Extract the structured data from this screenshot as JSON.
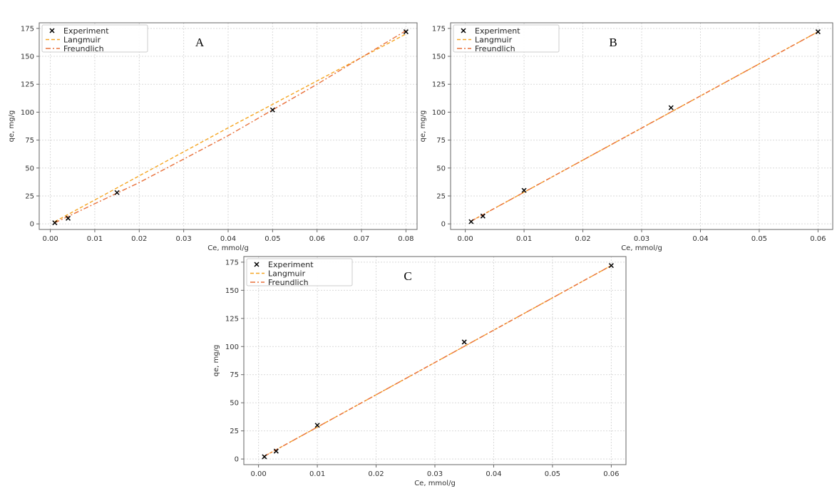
{
  "colors": {
    "experiment": "#000000",
    "langmuir": "#f5a623",
    "freundlich": "#e8703a",
    "grid": "#d9d9d9",
    "axis": "#666666"
  },
  "chart_data": [
    {
      "panel": "A",
      "type": "line",
      "xlabel": "Ce, mmol/g",
      "ylabel": "qe, mg/g",
      "xlim": [
        -0.0025,
        0.0825
      ],
      "ylim": [
        -5,
        180
      ],
      "xticks": [
        0.0,
        0.01,
        0.02,
        0.03,
        0.04,
        0.05,
        0.06,
        0.07,
        0.08
      ],
      "xtick_labels": [
        "0.00",
        "0.01",
        "0.02",
        "0.03",
        "0.04",
        "0.05",
        "0.06",
        "0.07",
        "0.08"
      ],
      "yticks": [
        0,
        25,
        50,
        75,
        100,
        125,
        150,
        175
      ],
      "ytick_labels": [
        "0",
        "25",
        "50",
        "75",
        "100",
        "125",
        "150",
        "175"
      ],
      "grid": true,
      "legend_position": "top-left",
      "series": [
        {
          "name": "Experiment",
          "style": "markers-x",
          "x": [
            0.001,
            0.004,
            0.015,
            0.05,
            0.08
          ],
          "y": [
            1,
            5,
            28,
            102,
            172
          ]
        },
        {
          "name": "Langmuir",
          "style": "dashed",
          "x": [
            0.001,
            0.02,
            0.04,
            0.06,
            0.08
          ],
          "y": [
            2,
            43,
            86,
            128,
            170
          ]
        },
        {
          "name": "Freundlich",
          "style": "dashdot",
          "x": [
            0.001,
            0.02,
            0.04,
            0.06,
            0.08
          ],
          "y": [
            1,
            37,
            79,
            125,
            173
          ]
        }
      ]
    },
    {
      "panel": "B",
      "type": "line",
      "xlabel": "Ce, mmol/g",
      "ylabel": "qe, mg/g",
      "xlim": [
        -0.0025,
        0.0625
      ],
      "ylim": [
        -5,
        180
      ],
      "xticks": [
        0.0,
        0.01,
        0.02,
        0.03,
        0.04,
        0.05,
        0.06
      ],
      "xtick_labels": [
        "0.00",
        "0.01",
        "0.02",
        "0.03",
        "0.04",
        "0.05",
        "0.06"
      ],
      "yticks": [
        0,
        25,
        50,
        75,
        100,
        125,
        150,
        175
      ],
      "ytick_labels": [
        "0",
        "25",
        "50",
        "75",
        "100",
        "125",
        "150",
        "175"
      ],
      "grid": true,
      "legend_position": "top-left",
      "series": [
        {
          "name": "Experiment",
          "style": "markers-x",
          "x": [
            0.001,
            0.003,
            0.01,
            0.035,
            0.06
          ],
          "y": [
            2,
            7,
            30,
            104,
            172
          ]
        },
        {
          "name": "Langmuir",
          "style": "dashed",
          "x": [
            0.001,
            0.06
          ],
          "y": [
            2.5,
            172
          ]
        },
        {
          "name": "Freundlich",
          "style": "dashdot",
          "x": [
            0.001,
            0.06
          ],
          "y": [
            2.5,
            172
          ]
        }
      ]
    },
    {
      "panel": "C",
      "type": "line",
      "xlabel": "Ce, mmol/g",
      "ylabel": "qe, mg/g",
      "xlim": [
        -0.0025,
        0.0625
      ],
      "ylim": [
        -5,
        180
      ],
      "xticks": [
        0.0,
        0.01,
        0.02,
        0.03,
        0.04,
        0.05,
        0.06
      ],
      "xtick_labels": [
        "0.00",
        "0.01",
        "0.02",
        "0.03",
        "0.04",
        "0.05",
        "0.06"
      ],
      "yticks": [
        0,
        25,
        50,
        75,
        100,
        125,
        150,
        175
      ],
      "ytick_labels": [
        "0",
        "25",
        "50",
        "75",
        "100",
        "125",
        "150",
        "175"
      ],
      "grid": true,
      "legend_position": "top-left",
      "series": [
        {
          "name": "Experiment",
          "style": "markers-x",
          "x": [
            0.001,
            0.003,
            0.01,
            0.035,
            0.06
          ],
          "y": [
            2,
            7,
            30,
            104,
            172
          ]
        },
        {
          "name": "Langmuir",
          "style": "dashed",
          "x": [
            0.001,
            0.06
          ],
          "y": [
            2.5,
            172
          ]
        },
        {
          "name": "Freundlich",
          "style": "dashdot",
          "x": [
            0.001,
            0.06
          ],
          "y": [
            2.5,
            172
          ]
        }
      ]
    }
  ]
}
